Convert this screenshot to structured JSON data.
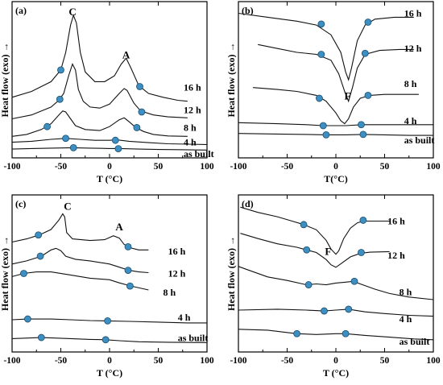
{
  "colors": {
    "marker_fill": "#3d8fc2",
    "marker_edge": "#1b4d6e",
    "curve": "#111111"
  },
  "chart_data": [
    {
      "type": "line",
      "panel_label": "(a)",
      "xlabel": "T (°C)",
      "ylabel": "Heat flow (exo) →",
      "xlim": [
        -100,
        100
      ],
      "xticks": [
        "-100",
        "-50",
        "0",
        "50",
        "100"
      ],
      "peak_labels": [
        {
          "text": "C",
          "x": -38,
          "y": 7.5
        },
        {
          "text": "A",
          "x": 17,
          "y": 5.3
        }
      ],
      "series": [
        {
          "name": "16 h",
          "label_x": 76,
          "label_y": 3.6,
          "x": [
            -100,
            -80,
            -60,
            -50,
            -45,
            -40,
            -37,
            -34,
            -30,
            -25,
            -15,
            -5,
            5,
            12,
            17,
            22,
            30,
            40,
            55,
            70,
            80
          ],
          "y": [
            3.1,
            3.4,
            3.9,
            4.5,
            5.4,
            6.8,
            7.3,
            6.9,
            5.4,
            4.4,
            3.9,
            3.9,
            4.2,
            4.8,
            5.1,
            4.6,
            3.7,
            3.3,
            3.1,
            2.95,
            2.9
          ],
          "markers": [
            [
              -50,
              4.5
            ],
            [
              31,
              3.65
            ]
          ]
        },
        {
          "name": "12 h",
          "label_x": 76,
          "label_y": 2.45,
          "x": [
            -100,
            -80,
            -60,
            -52,
            -47,
            -42,
            -38,
            -35,
            -32,
            -27,
            -20,
            -10,
            0,
            10,
            15,
            18,
            25,
            32,
            45,
            60,
            80
          ],
          "y": [
            2.0,
            2.2,
            2.6,
            2.95,
            3.3,
            4.2,
            4.8,
            4.5,
            3.5,
            2.9,
            2.6,
            2.55,
            2.75,
            3.3,
            3.55,
            3.45,
            2.8,
            2.4,
            2.2,
            2.1,
            2.05
          ],
          "markers": [
            [
              -51,
              3.0
            ],
            [
              33,
              2.35
            ]
          ]
        },
        {
          "name": "8 h",
          "label_x": 76,
          "label_y": 1.55,
          "x": [
            -100,
            -85,
            -70,
            -60,
            -52,
            -48,
            -45,
            -40,
            -35,
            -25,
            -10,
            0,
            10,
            15,
            20,
            27,
            35,
            45,
            60,
            80
          ],
          "y": [
            1.1,
            1.2,
            1.45,
            1.75,
            2.2,
            2.4,
            2.35,
            2.0,
            1.65,
            1.45,
            1.4,
            1.6,
            1.95,
            2.05,
            1.85,
            1.55,
            1.35,
            1.2,
            1.12,
            1.1
          ],
          "markers": [
            [
              -64,
              1.6
            ],
            [
              28,
              1.55
            ]
          ]
        },
        {
          "name": "4 h",
          "label_x": 76,
          "label_y": 0.8,
          "x": [
            -100,
            -80,
            -60,
            -45,
            -30,
            -15,
            0,
            8,
            20,
            40,
            60,
            80,
            100
          ],
          "y": [
            0.8,
            0.85,
            0.95,
            1.0,
            0.95,
            0.9,
            0.9,
            0.92,
            0.85,
            0.78,
            0.72,
            0.7,
            0.68
          ],
          "markers": [
            [
              -45,
              1.0
            ],
            [
              6,
              0.9
            ]
          ]
        },
        {
          "name": "as built",
          "label_x": 76,
          "label_y": 0.2,
          "x": [
            -100,
            -80,
            -60,
            -38,
            -20,
            0,
            10,
            30,
            50,
            70,
            100
          ],
          "y": [
            0.45,
            0.48,
            0.5,
            0.52,
            0.5,
            0.48,
            0.48,
            0.45,
            0.43,
            0.42,
            0.4
          ],
          "markers": [
            [
              -37,
              0.52
            ],
            [
              9,
              0.47
            ]
          ]
        }
      ]
    },
    {
      "type": "line",
      "panel_label": "(b)",
      "xlabel": "T(°C)",
      "ylabel": "Heat flow (exo) →",
      "xlim": [
        -100,
        100
      ],
      "xticks": [
        "-100",
        "-50",
        "0",
        "50",
        "100"
      ],
      "peak_labels": [
        {
          "text": "F",
          "x": 12,
          "y": 3.2
        }
      ],
      "series": [
        {
          "name": "16 h",
          "label_x": 70,
          "label_y": 7.4,
          "x": [
            -100,
            -70,
            -40,
            -20,
            -5,
            5,
            10,
            13,
            16,
            22,
            30,
            40,
            60,
            80
          ],
          "y": [
            7.4,
            7.2,
            7.0,
            6.8,
            6.3,
            5.4,
            4.4,
            4.0,
            4.6,
            6.0,
            6.8,
            7.1,
            7.2,
            7.2
          ],
          "markers": [
            [
              -15,
              6.85
            ],
            [
              33,
              6.95
            ]
          ]
        },
        {
          "name": "12 h",
          "label_x": 70,
          "label_y": 5.6,
          "x": [
            -80,
            -60,
            -40,
            -20,
            -5,
            3,
            9,
            13,
            17,
            22,
            30,
            45,
            65,
            80
          ],
          "y": [
            5.8,
            5.6,
            5.4,
            5.3,
            5.0,
            4.3,
            3.4,
            2.9,
            3.6,
            4.6,
            5.3,
            5.5,
            5.55,
            5.55
          ],
          "markers": [
            [
              -15,
              5.3
            ],
            [
              30,
              5.35
            ]
          ]
        },
        {
          "name": "8 h",
          "label_x": 70,
          "label_y": 3.8,
          "x": [
            -85,
            -60,
            -40,
            -20,
            -10,
            0,
            5,
            9,
            13,
            18,
            25,
            35,
            50,
            70,
            85
          ],
          "y": [
            3.6,
            3.5,
            3.4,
            3.2,
            2.9,
            2.3,
            1.9,
            1.75,
            2.0,
            2.6,
            3.05,
            3.2,
            3.25,
            3.25,
            3.25
          ],
          "markers": [
            [
              -17,
              3.05
            ],
            [
              33,
              3.2
            ]
          ]
        },
        {
          "name": "4 h",
          "label_x": 70,
          "label_y": 1.9,
          "x": [
            -100,
            -60,
            -30,
            -13,
            0,
            10,
            27,
            50,
            75,
            100
          ],
          "y": [
            1.8,
            1.75,
            1.7,
            1.65,
            1.65,
            1.65,
            1.7,
            1.7,
            1.7,
            1.7
          ],
          "markers": [
            [
              -13,
              1.65
            ],
            [
              26,
              1.7
            ]
          ]
        },
        {
          "name": "as built",
          "label_x": 70,
          "label_y": 0.9,
          "x": [
            -100,
            -60,
            -30,
            -10,
            10,
            28,
            50,
            75,
            100
          ],
          "y": [
            1.25,
            1.22,
            1.2,
            1.18,
            1.18,
            1.2,
            1.18,
            1.15,
            1.15
          ],
          "markers": [
            [
              -10,
              1.18
            ],
            [
              28,
              1.2
            ]
          ]
        }
      ]
    },
    {
      "type": "line",
      "panel_label": "(c)",
      "xlabel": "T (°C)",
      "ylabel": "Heat flow (exo) →",
      "xlim": [
        -100,
        100
      ],
      "xticks": [
        "-100",
        "-50",
        "0",
        "50",
        "100"
      ],
      "peak_labels": [
        {
          "text": "C",
          "x": -43,
          "y": 9.3
        },
        {
          "text": "A",
          "x": 10,
          "y": 8.0
        }
      ],
      "series": [
        {
          "name": "16 h",
          "label_x": 60,
          "label_y": 6.4,
          "x": [
            -100,
            -85,
            -72,
            -60,
            -52,
            -48,
            -46,
            -44,
            -38,
            -20,
            -5,
            4,
            10,
            15,
            20,
            30,
            40
          ],
          "y": [
            7.0,
            7.2,
            7.45,
            7.8,
            8.4,
            8.8,
            8.6,
            7.6,
            7.2,
            7.1,
            7.15,
            7.4,
            7.25,
            6.85,
            6.65,
            6.5,
            6.5
          ],
          "markers": [
            [
              -73,
              7.45
            ],
            [
              19,
              6.7
            ]
          ]
        },
        {
          "name": "12 h",
          "label_x": 60,
          "label_y": 5.0,
          "x": [
            -100,
            -85,
            -70,
            -60,
            -55,
            -50,
            -45,
            -35,
            -20,
            0,
            10,
            20,
            30,
            40
          ],
          "y": [
            5.6,
            5.8,
            6.1,
            6.5,
            6.6,
            6.45,
            6.1,
            5.9,
            5.8,
            5.6,
            5.4,
            5.2,
            5.1,
            5.05
          ],
          "markers": [
            [
              -71,
              6.1
            ],
            [
              19,
              5.2
            ]
          ]
        },
        {
          "name": "8 h",
          "label_x": 55,
          "label_y": 3.8,
          "x": [
            -100,
            -88,
            -75,
            -60,
            -40,
            -20,
            0,
            10,
            22,
            40
          ],
          "y": [
            4.8,
            5.0,
            5.1,
            5.1,
            4.9,
            4.7,
            4.6,
            4.4,
            4.2,
            3.95
          ],
          "markers": [
            [
              -88,
              5.0
            ],
            [
              21,
              4.2
            ]
          ]
        },
        {
          "name": "4 h",
          "label_x": 70,
          "label_y": 2.2,
          "x": [
            -100,
            -84,
            -60,
            -40,
            -20,
            -2,
            20,
            50,
            80,
            100
          ],
          "y": [
            2.05,
            2.1,
            2.1,
            2.05,
            2.0,
            1.98,
            1.95,
            1.9,
            1.85,
            1.85
          ],
          "markers": [
            [
              -84,
              2.1
            ],
            [
              -2,
              1.98
            ]
          ]
        },
        {
          "name": "as built",
          "label_x": 70,
          "label_y": 0.9,
          "x": [
            -100,
            -70,
            -40,
            -20,
            -4,
            10,
            30,
            60,
            100
          ],
          "y": [
            0.85,
            0.92,
            0.85,
            0.8,
            0.78,
            0.72,
            0.65,
            0.62,
            0.6
          ],
          "markers": [
            [
              -70,
              0.92
            ],
            [
              -4,
              0.78
            ]
          ]
        }
      ]
    },
    {
      "type": "line",
      "panel_label": "(d)",
      "xlabel": "T (°C)",
      "ylabel": "Heat flow (exo) →",
      "xlim": [
        -100,
        100
      ],
      "xticks": [
        "-100",
        "-50",
        "0",
        "50",
        "100"
      ],
      "peak_labels": [
        {
          "text": "F",
          "x": -8,
          "y": 5.8
        }
      ],
      "series": [
        {
          "name": "16 h",
          "label_x": 53,
          "label_y": 7.5,
          "x": [
            -98,
            -80,
            -60,
            -45,
            -33,
            -20,
            -10,
            -5,
            0,
            3,
            8,
            15,
            22,
            28,
            40,
            55
          ],
          "y": [
            8.3,
            8.0,
            7.75,
            7.5,
            7.3,
            7.0,
            6.4,
            5.9,
            5.6,
            5.8,
            6.5,
            7.1,
            7.4,
            7.5,
            7.5,
            7.5
          ],
          "markers": [
            [
              -33,
              7.3
            ],
            [
              28,
              7.55
            ]
          ]
        },
        {
          "name": "12 h",
          "label_x": 53,
          "label_y": 5.55,
          "x": [
            -98,
            -80,
            -60,
            -40,
            -30,
            -20,
            -10,
            -5,
            0,
            5,
            15,
            25,
            35,
            55
          ],
          "y": [
            6.8,
            6.5,
            6.2,
            6.0,
            5.85,
            5.7,
            5.3,
            5.0,
            4.85,
            5.05,
            5.45,
            5.65,
            5.72,
            5.75
          ],
          "markers": [
            [
              -30,
              5.85
            ],
            [
              26,
              5.7
            ]
          ]
        },
        {
          "name": "8 h",
          "label_x": 65,
          "label_y": 3.45,
          "x": [
            -100,
            -85,
            -70,
            -50,
            -30,
            -20,
            -10,
            0,
            10,
            18,
            25,
            40,
            55,
            75,
            100
          ],
          "y": [
            4.9,
            4.6,
            4.3,
            4.1,
            3.85,
            3.9,
            3.85,
            3.95,
            4.0,
            4.05,
            3.9,
            3.6,
            3.35,
            3.15,
            3.0
          ],
          "markers": [
            [
              -28,
              3.85
            ],
            [
              19,
              4.05
            ]
          ]
        },
        {
          "name": "4 h",
          "label_x": 65,
          "label_y": 1.9,
          "x": [
            -100,
            -60,
            -30,
            -12,
            0,
            13,
            30,
            50,
            75,
            100
          ],
          "y": [
            2.4,
            2.45,
            2.4,
            2.35,
            2.4,
            2.45,
            2.3,
            2.2,
            2.1,
            2.05
          ],
          "markers": [
            [
              -12,
              2.35
            ],
            [
              13,
              2.45
            ]
          ]
        },
        {
          "name": "as built",
          "label_x": 65,
          "label_y": 0.6,
          "x": [
            -100,
            -70,
            -40,
            -20,
            0,
            10,
            30,
            55,
            80,
            100
          ],
          "y": [
            1.3,
            1.25,
            1.05,
            1.0,
            1.05,
            1.05,
            0.95,
            0.85,
            0.75,
            0.7
          ],
          "markers": [
            [
              -40,
              1.05
            ],
            [
              10,
              1.05
            ]
          ]
        }
      ]
    }
  ]
}
